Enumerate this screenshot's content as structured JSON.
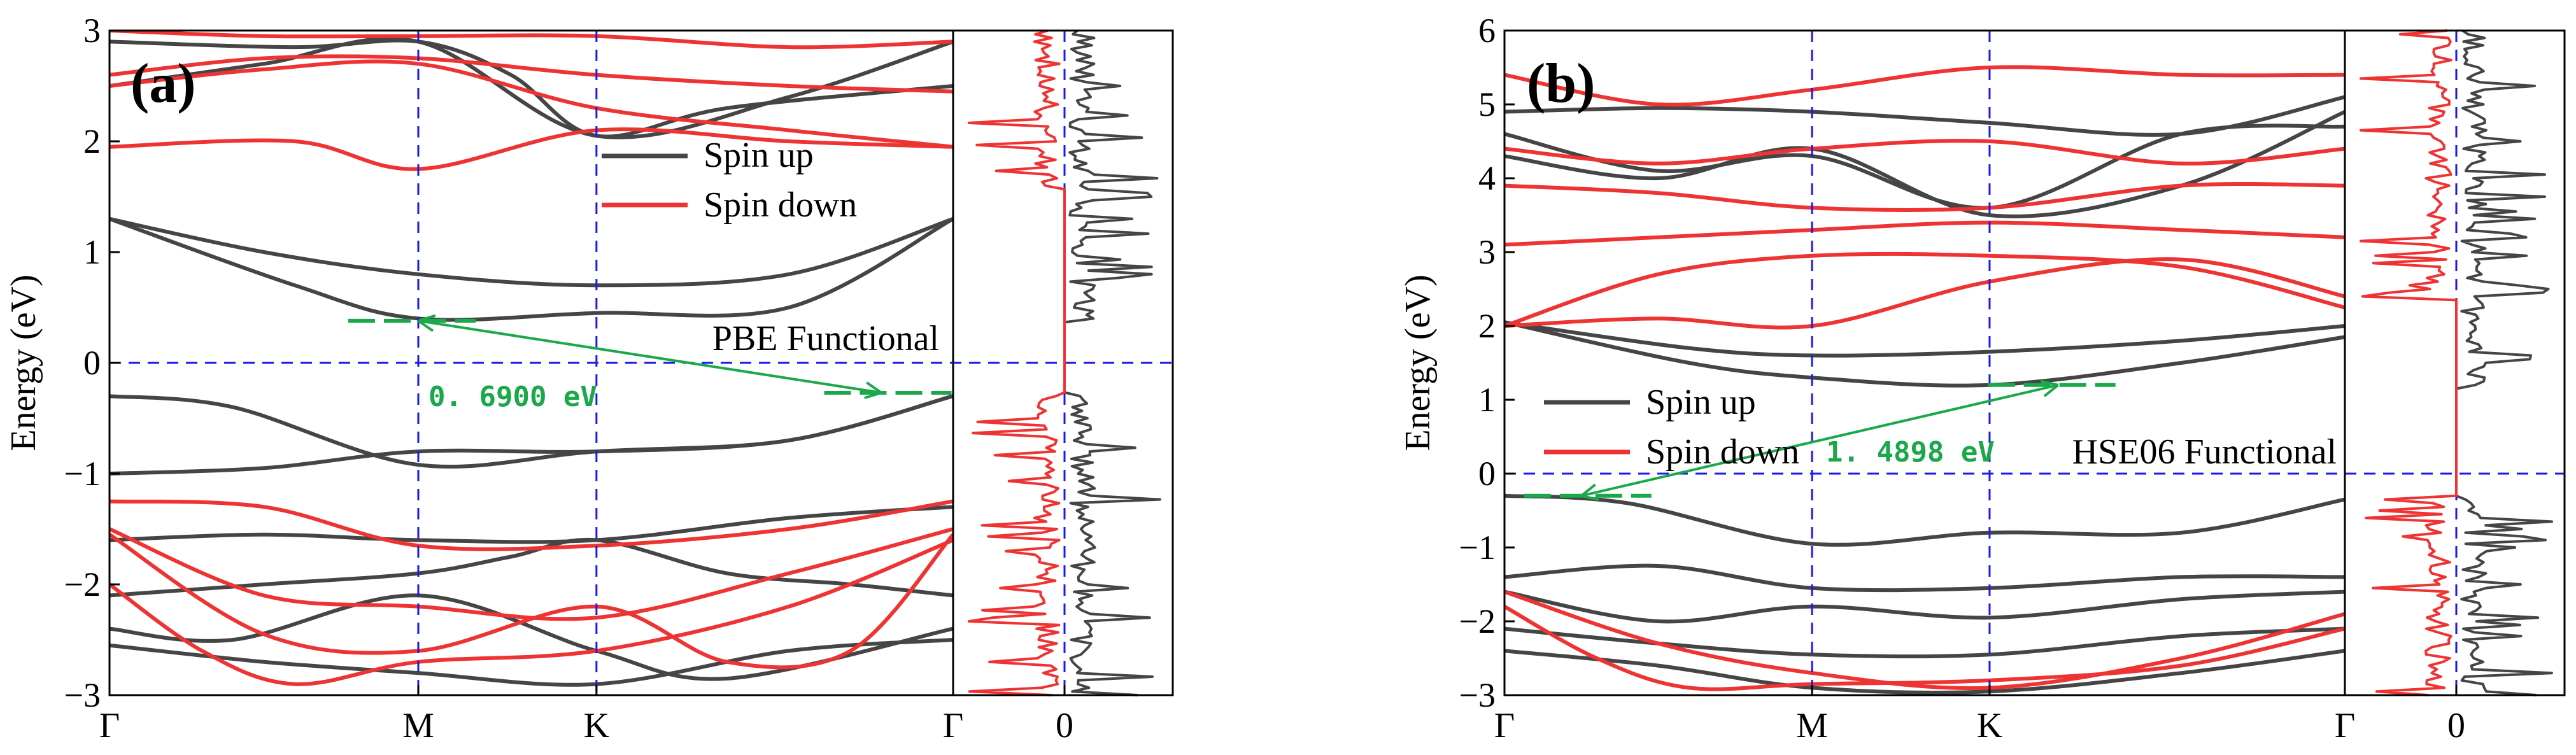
{
  "chart_data": [
    {
      "type": "line",
      "panel_label": "(a)",
      "ylabel": "Energy (eV)",
      "ylim": [
        -3,
        3
      ],
      "y_ticks": [
        "−3",
        "−2",
        "−1",
        "0",
        "1",
        "2",
        "3"
      ],
      "k_points": [
        "Γ",
        "M",
        "K",
        "Γ"
      ],
      "k_positions": [
        0,
        1,
        1.577,
        2.732
      ],
      "fermi_level": 0,
      "dos_tick": "0",
      "functional_label": "PBE Functional",
      "legend": [
        "Spin up",
        "Spin down"
      ],
      "colors": {
        "spin_up": "#454545",
        "spin_down": "#ee3333",
        "fermi": "#1a1aee",
        "gap": "#1aa84a"
      },
      "gap": {
        "label": "0. 6900  eV",
        "value_eV": 0.69,
        "cbm": [
          1.0,
          0.38
        ],
        "vbm": [
          2.5,
          -0.27
        ]
      },
      "series": [
        {
          "name": "Spin up",
          "x": [
            0,
            0.4,
            1.0,
            1.577,
            2.2,
            2.732
          ],
          "values": [
            -0.3,
            -0.4,
            -0.92,
            -0.8,
            -0.7,
            -0.3
          ]
        },
        {
          "name": "Spin up",
          "x": [
            0,
            0.5,
            1.0,
            1.577,
            2.2,
            2.732
          ],
          "values": [
            -1.0,
            -0.95,
            -0.8,
            -0.8,
            -0.7,
            -0.3
          ]
        },
        {
          "name": "Spin up",
          "x": [
            0,
            0.5,
            1.0,
            1.577,
            2.2,
            2.732
          ],
          "values": [
            -1.6,
            -1.55,
            -1.6,
            -1.6,
            -1.4,
            -1.3
          ]
        },
        {
          "name": "Spin up",
          "x": [
            0,
            0.5,
            1.0,
            1.3,
            1.577,
            2.0,
            2.4,
            2.732
          ],
          "values": [
            -2.1,
            -2.0,
            -1.9,
            -1.75,
            -1.6,
            -1.9,
            -2.0,
            -2.1
          ]
        },
        {
          "name": "Spin up",
          "x": [
            0,
            0.4,
            1.0,
            1.577,
            2.0,
            2.732
          ],
          "values": [
            -2.4,
            -2.5,
            -2.1,
            -2.6,
            -2.85,
            -2.4
          ]
        },
        {
          "name": "Spin up",
          "x": [
            0,
            0.5,
            1.0,
            1.577,
            2.2,
            2.732
          ],
          "values": [
            -2.55,
            -2.7,
            -2.8,
            -2.9,
            -2.6,
            -2.5
          ]
        },
        {
          "name": "Spin up",
          "x": [
            0,
            0.6,
            1.0,
            1.577,
            2.2,
            2.732
          ],
          "values": [
            1.3,
            0.7,
            0.4,
            0.45,
            0.5,
            1.3
          ]
        },
        {
          "name": "Spin up",
          "x": [
            0,
            0.5,
            1.0,
            1.577,
            2.2,
            2.732
          ],
          "values": [
            1.3,
            1.0,
            0.8,
            0.7,
            0.8,
            1.3
          ]
        },
        {
          "name": "Spin up",
          "x": [
            0,
            0.5,
            1.0,
            1.577,
            2.2,
            2.732
          ],
          "values": [
            2.5,
            2.7,
            2.9,
            2.05,
            2.4,
            2.9
          ]
        },
        {
          "name": "Spin up",
          "x": [
            0,
            0.6,
            1.0,
            1.3,
            1.577,
            2.0,
            2.732
          ],
          "values": [
            2.9,
            2.85,
            2.9,
            2.6,
            2.05,
            2.3,
            2.5
          ]
        },
        {
          "name": "Spin down",
          "x": [
            0,
            0.5,
            1.0,
            1.577,
            2.2,
            2.732
          ],
          "values": [
            -1.25,
            -1.3,
            -1.65,
            -1.65,
            -1.5,
            -1.25
          ]
        },
        {
          "name": "Spin down",
          "x": [
            0,
            0.5,
            1.0,
            1.577,
            2.2,
            2.732
          ],
          "values": [
            -1.5,
            -2.1,
            -2.2,
            -2.3,
            -1.9,
            -1.5
          ]
        },
        {
          "name": "Spin down",
          "x": [
            0,
            0.5,
            1.0,
            1.577,
            2.0,
            2.4,
            2.732
          ],
          "values": [
            -1.55,
            -2.45,
            -2.6,
            -2.2,
            -2.7,
            -2.6,
            -1.55
          ]
        },
        {
          "name": "Spin down",
          "x": [
            0,
            0.3,
            0.6,
            1.0,
            1.577,
            2.2,
            2.732
          ],
          "values": [
            -2.0,
            -2.6,
            -2.9,
            -2.7,
            -2.6,
            -2.2,
            -1.6
          ]
        },
        {
          "name": "Spin down",
          "x": [
            0,
            0.6,
            1.0,
            1.577,
            2.2,
            2.732
          ],
          "values": [
            1.95,
            2.0,
            1.75,
            2.1,
            2.0,
            1.95
          ]
        },
        {
          "name": "Spin down",
          "x": [
            0,
            0.5,
            1.0,
            1.577,
            2.2,
            2.732
          ],
          "values": [
            2.5,
            2.65,
            2.7,
            2.3,
            2.1,
            1.95
          ]
        },
        {
          "name": "Spin down",
          "x": [
            0,
            0.5,
            1.0,
            1.577,
            2.2,
            2.732
          ],
          "values": [
            2.6,
            2.75,
            2.75,
            2.6,
            2.5,
            2.45
          ]
        },
        {
          "name": "Spin down",
          "x": [
            0,
            0.5,
            1.0,
            1.577,
            2.2,
            2.732
          ],
          "values": [
            3.0,
            2.95,
            2.95,
            2.95,
            2.85,
            2.9
          ]
        }
      ]
    },
    {
      "type": "line",
      "panel_label": "(b)",
      "ylabel": "Energy (eV)",
      "ylim": [
        -3,
        6
      ],
      "y_ticks": [
        "−3",
        "−2",
        "−1",
        "0",
        "1",
        "2",
        "3",
        "4",
        "5",
        "6"
      ],
      "k_points": [
        "Γ",
        "M",
        "K",
        "Γ"
      ],
      "k_positions": [
        0,
        1,
        1.577,
        2.732
      ],
      "fermi_level": 0,
      "dos_tick": "0",
      "functional_label": "HSE06 Functional",
      "legend": [
        "Spin up",
        "Spin down"
      ],
      "colors": {
        "spin_up": "#454545",
        "spin_down": "#ee3333",
        "fermi": "#1a1aee",
        "gap": "#1aa84a"
      },
      "gap": {
        "label": "1. 4898  eV",
        "value_eV": 1.4898,
        "cbm": [
          1.8,
          1.2
        ],
        "vbm": [
          0.25,
          -0.3
        ]
      },
      "series": [
        {
          "name": "Spin up",
          "x": [
            0,
            0.4,
            1.0,
            1.577,
            2.2,
            2.732
          ],
          "values": [
            -0.3,
            -0.4,
            -0.95,
            -0.8,
            -0.8,
            -0.35
          ]
        },
        {
          "name": "Spin up",
          "x": [
            0,
            0.5,
            1.0,
            1.577,
            2.2,
            2.732
          ],
          "values": [
            -1.4,
            -1.25,
            -1.55,
            -1.55,
            -1.4,
            -1.4
          ]
        },
        {
          "name": "Spin up",
          "x": [
            0,
            0.5,
            1.0,
            1.577,
            2.2,
            2.732
          ],
          "values": [
            -1.6,
            -2.0,
            -1.8,
            -1.95,
            -1.7,
            -1.6
          ]
        },
        {
          "name": "Spin up",
          "x": [
            0,
            0.5,
            1.0,
            1.577,
            2.2,
            2.732
          ],
          "values": [
            -2.1,
            -2.3,
            -2.45,
            -2.45,
            -2.2,
            -2.1
          ]
        },
        {
          "name": "Spin up",
          "x": [
            0,
            0.5,
            1.0,
            1.577,
            2.2,
            2.732
          ],
          "values": [
            -2.4,
            -2.6,
            -2.9,
            -2.95,
            -2.7,
            -2.4
          ]
        },
        {
          "name": "Spin up",
          "x": [
            0,
            0.6,
            1.0,
            1.577,
            2.2,
            2.732
          ],
          "values": [
            2.05,
            1.7,
            1.6,
            1.65,
            1.8,
            2.0
          ]
        },
        {
          "name": "Spin up",
          "x": [
            0,
            0.6,
            1.0,
            1.577,
            2.2,
            2.732
          ],
          "values": [
            2.05,
            1.5,
            1.3,
            1.2,
            1.5,
            1.85
          ]
        },
        {
          "name": "Spin up",
          "x": [
            0,
            0.5,
            1.0,
            1.577,
            2.2,
            2.732
          ],
          "values": [
            4.3,
            4.0,
            4.4,
            3.5,
            3.9,
            4.9
          ]
        },
        {
          "name": "Spin up",
          "x": [
            0,
            0.5,
            1.0,
            1.577,
            2.2,
            2.732
          ],
          "values": [
            4.6,
            4.1,
            4.3,
            3.6,
            4.6,
            4.7
          ]
        },
        {
          "name": "Spin up",
          "x": [
            0,
            0.5,
            1.0,
            1.577,
            2.2,
            2.732
          ],
          "values": [
            4.9,
            4.95,
            4.9,
            4.75,
            4.6,
            5.1
          ]
        },
        {
          "name": "Spin down",
          "x": [
            0,
            0.5,
            1.0,
            1.577,
            2.2,
            2.732
          ],
          "values": [
            -1.6,
            -2.3,
            -2.7,
            -2.9,
            -2.5,
            -1.9
          ]
        },
        {
          "name": "Spin down",
          "x": [
            0,
            0.3,
            0.6,
            1.0,
            1.577,
            2.2,
            2.732
          ],
          "values": [
            -1.8,
            -2.5,
            -2.9,
            -2.85,
            -2.8,
            -2.6,
            -2.1
          ]
        },
        {
          "name": "Spin down",
          "x": [
            0,
            0.5,
            1.0,
            1.577,
            2.2,
            2.732
          ],
          "values": [
            2.0,
            2.7,
            2.95,
            2.95,
            2.8,
            2.25
          ]
        },
        {
          "name": "Spin down",
          "x": [
            0,
            0.5,
            1.0,
            1.577,
            2.2,
            2.732
          ],
          "values": [
            2.0,
            2.1,
            2.0,
            2.6,
            2.9,
            2.4
          ]
        },
        {
          "name": "Spin down",
          "x": [
            0,
            0.5,
            1.0,
            1.577,
            2.2,
            2.732
          ],
          "values": [
            3.1,
            3.2,
            3.3,
            3.4,
            3.3,
            3.2
          ]
        },
        {
          "name": "Spin down",
          "x": [
            0,
            0.5,
            1.0,
            1.577,
            2.2,
            2.732
          ],
          "values": [
            3.9,
            3.8,
            3.6,
            3.6,
            3.9,
            3.9
          ]
        },
        {
          "name": "Spin down",
          "x": [
            0,
            0.5,
            1.0,
            1.577,
            2.2,
            2.732
          ],
          "values": [
            4.4,
            4.2,
            4.4,
            4.5,
            4.2,
            4.4
          ]
        },
        {
          "name": "Spin down",
          "x": [
            0,
            0.5,
            1.0,
            1.577,
            2.2,
            2.732
          ],
          "values": [
            5.4,
            5.0,
            5.2,
            5.5,
            5.4,
            5.4
          ]
        }
      ]
    }
  ]
}
